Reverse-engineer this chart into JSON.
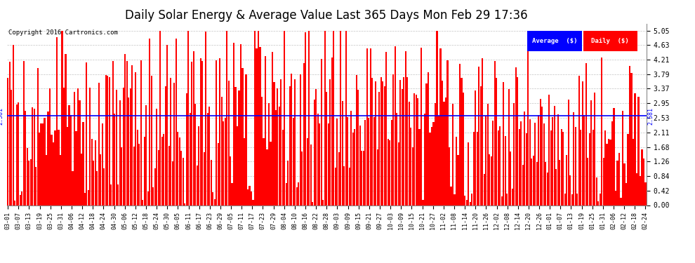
{
  "title": "Daily Solar Energy & Average Value Last 365 Days Mon Feb 29 17:36",
  "copyright": "Copyright 2016 Cartronics.com",
  "ylabel_right_ticks": [
    0.0,
    0.42,
    0.84,
    1.26,
    1.68,
    2.11,
    2.53,
    2.95,
    3.37,
    3.79,
    4.21,
    4.63,
    5.05
  ],
  "ylim": [
    0,
    5.25
  ],
  "average_value": 2.581,
  "average_label": "2.581",
  "bar_color": "#FF0000",
  "avg_line_color": "#0000FF",
  "background_color": "#FFFFFF",
  "grid_color": "#AAAAAA",
  "title_fontsize": 12,
  "legend_avg_color": "#0000FF",
  "legend_daily_color": "#FF0000",
  "x_tick_labels": [
    "03-01",
    "03-07",
    "03-13",
    "03-19",
    "03-25",
    "03-31",
    "04-06",
    "04-12",
    "04-18",
    "04-24",
    "04-30",
    "05-06",
    "05-12",
    "05-18",
    "05-24",
    "05-30",
    "06-05",
    "06-11",
    "06-17",
    "06-23",
    "06-29",
    "07-05",
    "07-11",
    "07-17",
    "07-23",
    "07-29",
    "08-04",
    "08-10",
    "08-16",
    "08-22",
    "08-28",
    "09-03",
    "09-09",
    "09-15",
    "09-21",
    "09-27",
    "10-03",
    "10-09",
    "10-15",
    "10-21",
    "10-27",
    "11-02",
    "11-08",
    "11-14",
    "11-20",
    "11-26",
    "12-02",
    "12-08",
    "12-14",
    "12-20",
    "12-26",
    "01-01",
    "01-07",
    "01-13",
    "01-19",
    "01-25",
    "01-31",
    "02-06",
    "02-12",
    "02-18",
    "02-24"
  ],
  "num_days": 365
}
